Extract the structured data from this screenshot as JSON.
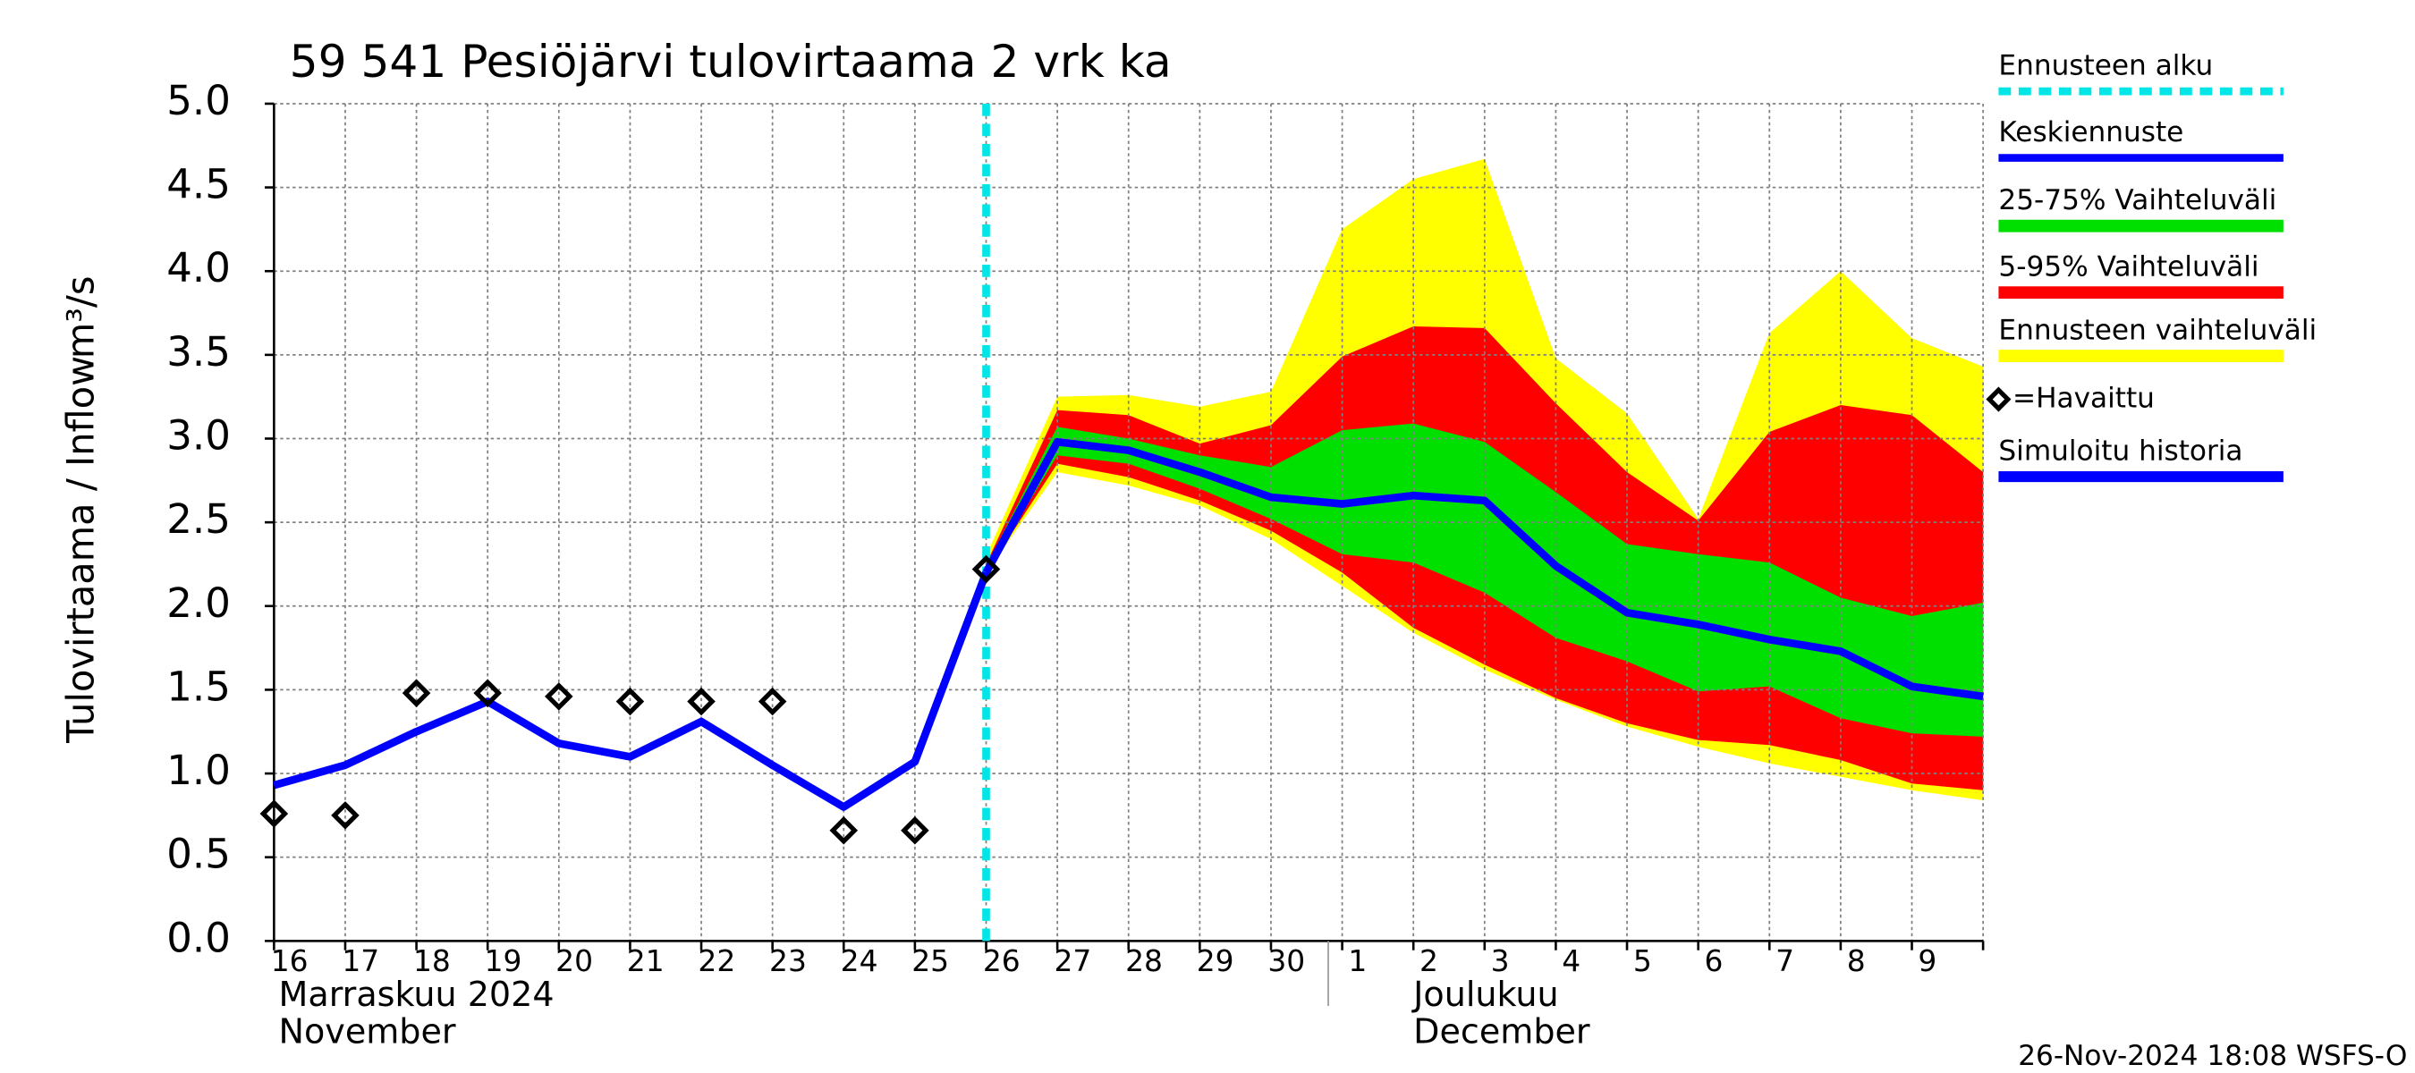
{
  "chart_data": {
    "type": "line",
    "title": "59 541 Pesiöjärvi tulovirtaama 2 vrk ka",
    "y_label": "Tulovirtaama / Inflow",
    "y_unit": "m³/s",
    "categories": [
      "16",
      "17",
      "18",
      "19",
      "20",
      "21",
      "22",
      "23",
      "24",
      "25",
      "26",
      "27",
      "28",
      "29",
      "30",
      "1",
      "2",
      "3",
      "4",
      "5",
      "6",
      "7",
      "8",
      "9",
      null
    ],
    "month_labels": [
      [
        "Marraskuu 2024",
        "November"
      ],
      [
        "Joulukuu",
        "December"
      ]
    ],
    "ylim": [
      0,
      5
    ],
    "yticks": [
      {
        "value": 0,
        "label": "0.0"
      },
      0.5,
      {
        "value": 1,
        "label": "1.0"
      },
      1.5,
      {
        "value": 2,
        "label": "2.0"
      },
      2.5,
      {
        "value": 3,
        "label": "3.0"
      },
      3.5,
      {
        "value": 4,
        "label": "4.0"
      },
      4.5,
      {
        "value": 5,
        "label": "5.0"
      }
    ],
    "grid": true,
    "forecast_start": {
      "name": "Ennusteen alku",
      "color": "#00e5e5",
      "x": 10
    },
    "bands": [
      {
        "name": "Ennusteen vaihteluväli",
        "color": "#ffff00",
        "upper": [
          null,
          null,
          null,
          null,
          null,
          null,
          null,
          null,
          null,
          null,
          2.3,
          3.25,
          3.26,
          3.19,
          3.28,
          4.25,
          4.55,
          4.67,
          3.48,
          3.15,
          2.52,
          3.63,
          4.0,
          3.6,
          3.43
        ],
        "lower": [
          null,
          null,
          null,
          null,
          null,
          null,
          null,
          null,
          null,
          null,
          2.2,
          2.8,
          2.72,
          2.6,
          2.4,
          2.12,
          1.84,
          1.62,
          1.44,
          1.28,
          1.16,
          1.06,
          0.98,
          0.9,
          0.84
        ]
      },
      {
        "name": "5-95% Vaihteluväli",
        "color": "#ff0000",
        "upper": [
          null,
          null,
          null,
          null,
          null,
          null,
          null,
          null,
          null,
          null,
          2.25,
          3.17,
          3.14,
          2.97,
          3.08,
          3.49,
          3.67,
          3.66,
          3.21,
          2.8,
          2.51,
          3.04,
          3.2,
          3.14,
          2.8
        ],
        "lower": [
          null,
          null,
          null,
          null,
          null,
          null,
          null,
          null,
          null,
          null,
          2.2,
          2.85,
          2.77,
          2.63,
          2.45,
          2.2,
          1.87,
          1.65,
          1.45,
          1.3,
          1.2,
          1.17,
          1.08,
          0.94,
          0.9
        ]
      },
      {
        "name": "25-75% Vaihteluväli",
        "color": "#00e000",
        "upper": [
          null,
          null,
          null,
          null,
          null,
          null,
          null,
          null,
          null,
          null,
          2.24,
          3.07,
          3.0,
          2.9,
          2.83,
          3.05,
          3.09,
          2.98,
          2.68,
          2.37,
          2.31,
          2.26,
          2.05,
          1.94,
          2.02
        ],
        "lower": [
          null,
          null,
          null,
          null,
          null,
          null,
          null,
          null,
          null,
          null,
          2.2,
          2.9,
          2.85,
          2.7,
          2.52,
          2.31,
          2.26,
          2.08,
          1.81,
          1.67,
          1.49,
          1.52,
          1.33,
          1.24,
          1.22
        ]
      }
    ],
    "series": [
      {
        "name": "Simuloitu historia",
        "color": "#0000ff",
        "values": [
          0.93,
          1.05,
          1.25,
          1.43,
          1.18,
          1.1,
          1.31,
          1.05,
          0.8,
          1.07,
          2.2,
          null,
          null,
          null,
          null,
          null,
          null,
          null,
          null,
          null,
          null,
          null,
          null,
          null,
          null
        ]
      },
      {
        "name": "Keskiennuste",
        "color": "#0000ff",
        "values": [
          null,
          null,
          null,
          null,
          null,
          null,
          null,
          null,
          null,
          null,
          2.2,
          2.98,
          2.93,
          2.8,
          2.65,
          2.61,
          2.66,
          2.63,
          2.24,
          1.96,
          1.89,
          1.8,
          1.73,
          1.52,
          1.46
        ]
      },
      {
        "name": "=Havaittu",
        "color": "#000000",
        "marker": "diamond",
        "values": [
          0.76,
          0.75,
          1.48,
          1.48,
          1.46,
          1.43,
          1.43,
          1.43,
          0.66,
          0.66,
          2.22,
          null,
          null,
          null,
          null,
          null,
          null,
          null,
          null,
          null,
          null,
          null,
          null,
          null,
          null
        ]
      }
    ],
    "footer": "26-Nov-2024 18:08 WSFS-O"
  }
}
